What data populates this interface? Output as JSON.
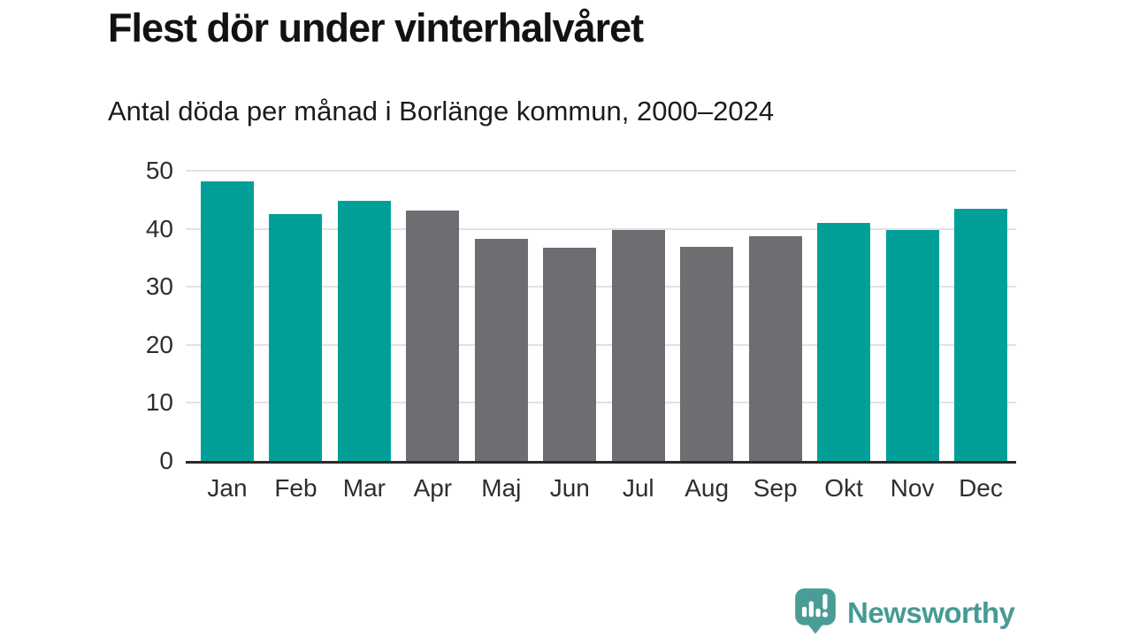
{
  "chart_data": {
    "type": "bar",
    "title": "Flest dör under vinterhalvåret",
    "subtitle": "Antal döda per månad i Borlänge kommun, 2000–2024",
    "categories": [
      "Jan",
      "Feb",
      "Mar",
      "Apr",
      "Maj",
      "Jun",
      "Jul",
      "Aug",
      "Sep",
      "Okt",
      "Nov",
      "Dec"
    ],
    "values": [
      48.2,
      42.6,
      44.8,
      43.2,
      38.3,
      36.7,
      39.8,
      36.9,
      38.7,
      41.0,
      39.8,
      43.5
    ],
    "highlight_winter": [
      true,
      true,
      true,
      false,
      false,
      false,
      false,
      false,
      false,
      true,
      true,
      true
    ],
    "colors": {
      "winter_teal": "#00a099",
      "summer_gray": "#6f6d72",
      "gridline": "#e2e2e2",
      "baseline": "#2a2a2a",
      "axis_text": "#2e2e2e"
    },
    "xlabel": "",
    "ylabel": "",
    "ylim": [
      0,
      50
    ],
    "yticks": [
      0,
      10,
      20,
      30,
      40,
      50
    ],
    "grid": true,
    "legend": "none"
  },
  "footer": {
    "brand_label": "Newsworthy",
    "brand_color": "#459a94",
    "logo_icon": "newsworthy-speech-bubble-bar-chart-exclamation"
  }
}
